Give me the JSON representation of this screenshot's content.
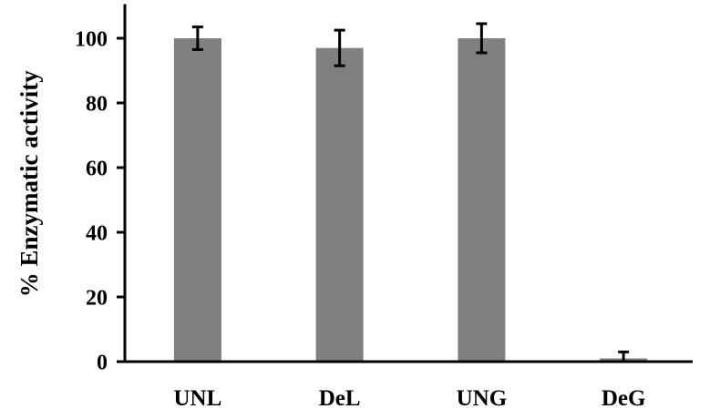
{
  "chart_data": {
    "type": "bar",
    "title": "",
    "xlabel": "",
    "ylabel": "% Enzymatic activity",
    "categories": [
      "UNL",
      "DeL",
      "UNG",
      "DeG"
    ],
    "values": [
      100,
      97,
      100,
      1
    ],
    "errors": [
      3.5,
      5.5,
      4.5,
      2
    ],
    "ylim": [
      0,
      110
    ],
    "yticks": [
      "0",
      "20",
      "40",
      "60",
      "80",
      "100"
    ],
    "grid": false,
    "legend": "none",
    "bar_color": "#808080",
    "error_bar_color": "#000000",
    "axis_color": "#000000"
  }
}
